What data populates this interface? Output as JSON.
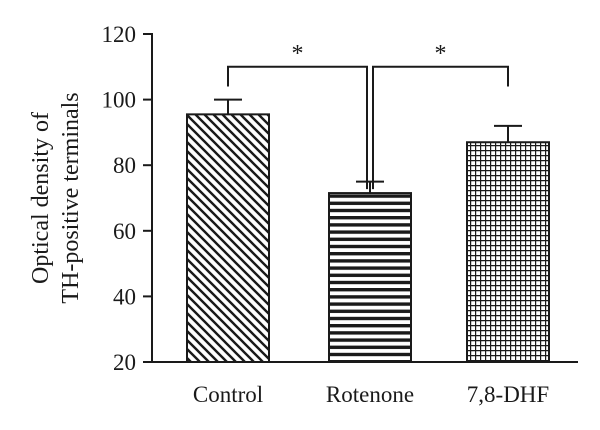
{
  "chart_data": {
    "type": "bar",
    "title": "",
    "ylabel_lines": [
      "Optical density of",
      "TH-positive terminals"
    ],
    "xlabel": "",
    "ylim": [
      20,
      120
    ],
    "yticks": [
      20,
      40,
      60,
      80,
      100,
      120
    ],
    "grid": false,
    "categories": [
      "Control",
      "Rotenone",
      "7,8-DHF"
    ],
    "values": [
      95.5,
      71.5,
      87
    ],
    "errors": [
      4.5,
      3.5,
      5
    ],
    "patterns": [
      "diagonal-hatch",
      "horizontal-stripes",
      "grid-crosshatch"
    ],
    "bar_color": "#ffffff",
    "stroke_color": "#1a1a1a",
    "significance": [
      {
        "from": "Control",
        "to": "Rotenone",
        "label": "*",
        "level": 110
      },
      {
        "from": "Rotenone",
        "to": "7,8-DHF",
        "label": "*",
        "level": 110
      }
    ]
  }
}
